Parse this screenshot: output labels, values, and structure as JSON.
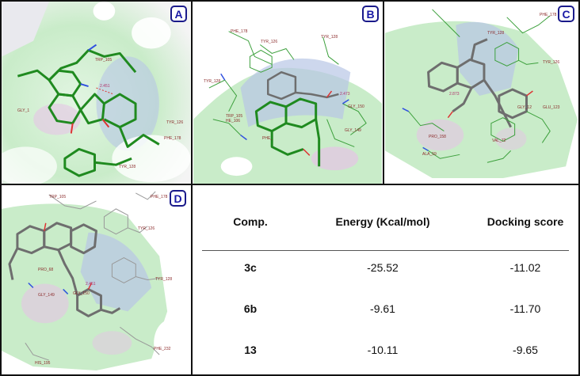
{
  "panels": {
    "A": {
      "label": "A",
      "residues": [
        "TRP_105",
        "GLY_1",
        "PHE_178",
        "TYR_126",
        "TYR_128"
      ],
      "hbond": "2.451"
    },
    "B": {
      "label": "B",
      "residues": [
        "PHE_178",
        "TYR_126",
        "TYR_128",
        "TRP_105",
        "HE_106",
        "TYR_128",
        "GLY_150",
        "GLY_149",
        "PHE_"
      ],
      "hbond": "2.473"
    },
    "C": {
      "label": "C",
      "residues": [
        "PHE_178",
        "TYR_128",
        "TYR_126",
        "GLY_12",
        "GLU_123",
        "PRO_158",
        "ALA_59",
        "VAL_72"
      ],
      "hbond": "2.873"
    },
    "D": {
      "label": "D",
      "residues": [
        "TRP_105",
        "PHE_178",
        "TYR_126",
        "PRO_68",
        "TYR_128",
        "GLY_149",
        "GLY_150",
        "PHE_232",
        "HIS_195"
      ],
      "hbond": "2.451"
    }
  },
  "table": {
    "headers": [
      "Comp.",
      "Energy (Kcal/mol)",
      "Docking score"
    ],
    "rows": [
      {
        "comp": "3c",
        "energy": "-25.52",
        "score": "-11.02"
      },
      {
        "comp": "6b",
        "energy": "-9.61",
        "score": "-11.70"
      },
      {
        "comp": "13",
        "energy": "-10.11",
        "score": "-9.65"
      }
    ]
  },
  "colors": {
    "surface_green": "#c9ecc9",
    "surface_blue": "#b8c6e6",
    "surface_pink": "#e6c4e6",
    "ligand_green": "#1f8a1f",
    "ligand_gray": "#6e6e6e",
    "badge_blue": "#1a1aa6"
  }
}
